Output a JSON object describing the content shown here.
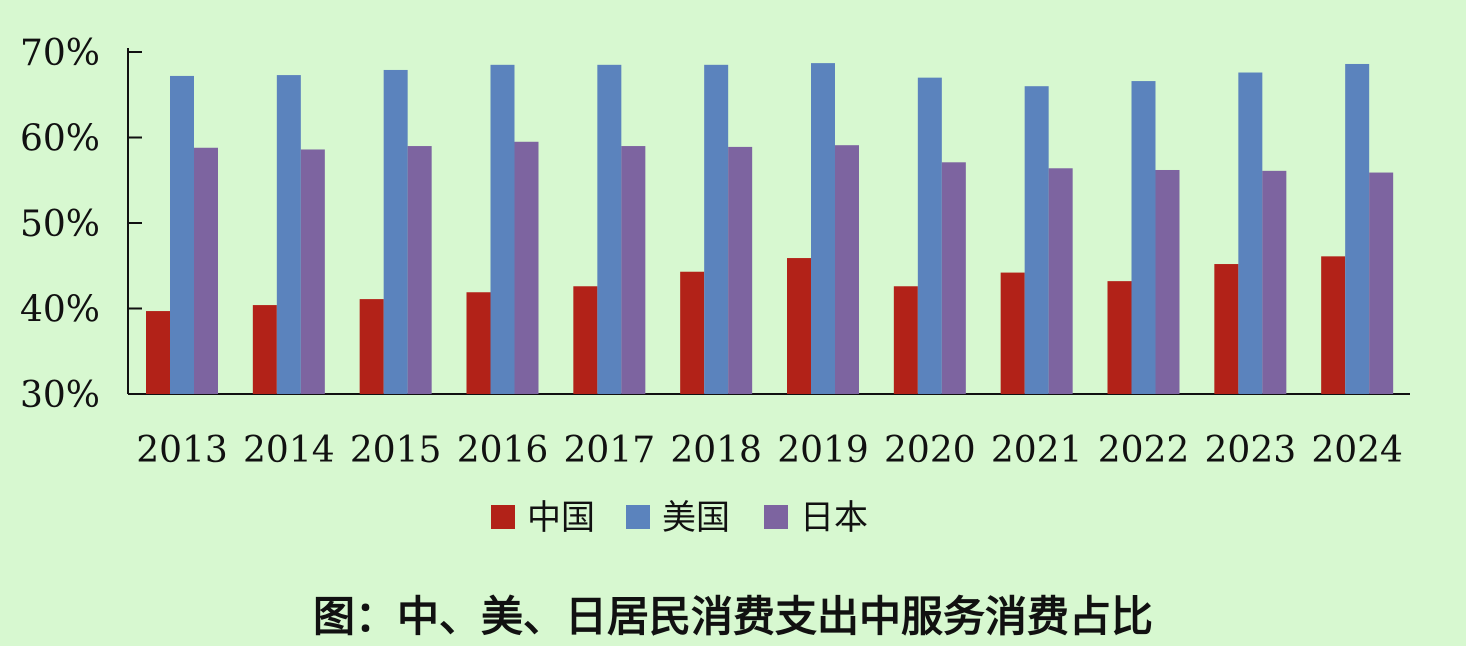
{
  "caption": "图：中、美、日居民消费支出中服务消费占比",
  "chart_data": {
    "type": "bar",
    "title": "",
    "xlabel": "",
    "ylabel": "",
    "categories": [
      "2013",
      "2014",
      "2015",
      "2016",
      "2017",
      "2018",
      "2019",
      "2020",
      "2021",
      "2022",
      "2023",
      "2024"
    ],
    "ylim": [
      30,
      70
    ],
    "yticks": [
      30,
      40,
      50,
      60,
      70
    ],
    "ytick_labels": [
      "30%",
      "40%",
      "50%",
      "60%",
      "70%"
    ],
    "grid": false,
    "legend_position": "bottom",
    "series": [
      {
        "name": "中国",
        "color": "#b22218",
        "values": [
          39.7,
          40.4,
          41.1,
          41.9,
          42.6,
          44.3,
          45.9,
          42.6,
          44.2,
          43.2,
          45.2,
          46.1
        ]
      },
      {
        "name": "美国",
        "color": "#5b83bd",
        "values": [
          67.2,
          67.3,
          67.9,
          68.5,
          68.5,
          68.5,
          68.7,
          67.0,
          66.0,
          66.6,
          67.6,
          68.6
        ]
      },
      {
        "name": "日本",
        "color": "#7d64a0",
        "values": [
          58.8,
          58.6,
          59.0,
          59.5,
          59.0,
          58.9,
          59.1,
          57.1,
          56.4,
          56.2,
          56.1,
          55.9
        ]
      }
    ]
  }
}
